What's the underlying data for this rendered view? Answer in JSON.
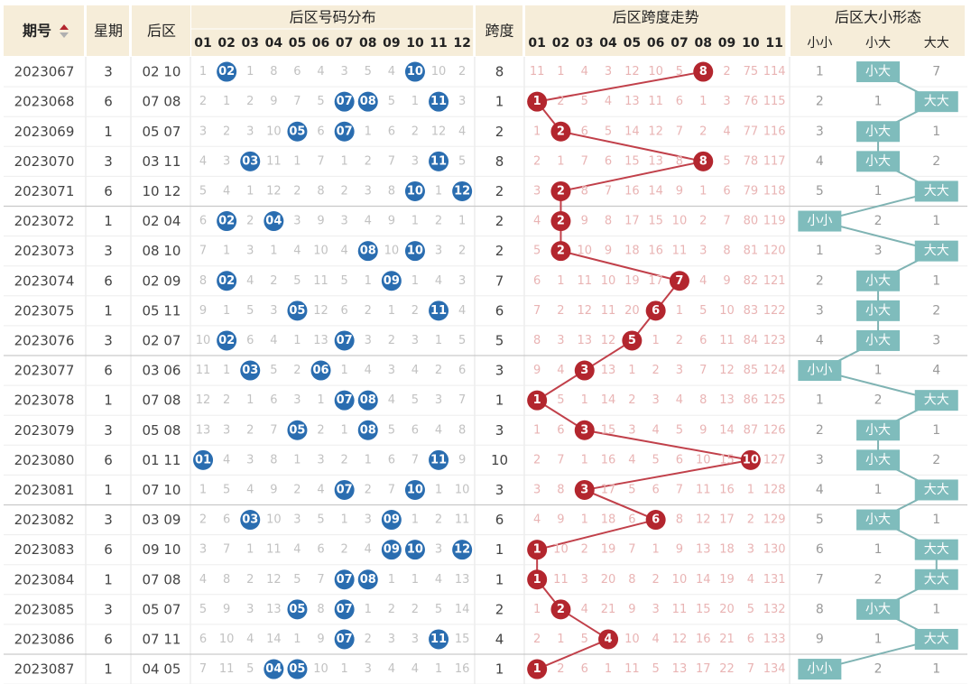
{
  "headers": {
    "issue": "期号",
    "weekday": "星期",
    "back": "后区",
    "distribution": "后区号码分布",
    "span": "跨度",
    "span_trend": "后区跨度走势",
    "size_form": "后区大小形态"
  },
  "number_labels": [
    "01",
    "02",
    "03",
    "04",
    "05",
    "06",
    "07",
    "08",
    "09",
    "10",
    "11",
    "12"
  ],
  "span_labels": [
    "01",
    "02",
    "03",
    "04",
    "05",
    "06",
    "07",
    "08",
    "09",
    "10",
    "11"
  ],
  "size_labels": [
    "小小",
    "小大",
    "大大"
  ],
  "colors": {
    "blue_ball": "#2a6db0",
    "red_ball": "#b3262e",
    "teal_tag": "#7fbcbc",
    "sort_icon_up": "#b3262e"
  },
  "chart_data": {
    "type": "table",
    "rows": [
      {
        "issue": "2023067",
        "weekday": "3",
        "back": "02 10",
        "dist": [
          "1",
          "02",
          "1",
          "8",
          "6",
          "4",
          "3",
          "5",
          "4",
          "10",
          "10",
          "2"
        ],
        "span": "8",
        "span_trend": [
          "11",
          "1",
          "4",
          "3",
          "12",
          "10",
          "5",
          "8",
          "2",
          "75",
          "114"
        ],
        "size": [
          "1",
          "小大",
          "7"
        ]
      },
      {
        "issue": "2023068",
        "weekday": "6",
        "back": "07 08",
        "dist": [
          "2",
          "1",
          "2",
          "9",
          "7",
          "5",
          "07",
          "08",
          "5",
          "1",
          "11",
          "3"
        ],
        "span": "1",
        "span_trend": [
          "1",
          "2",
          "5",
          "4",
          "13",
          "11",
          "6",
          "1",
          "3",
          "76",
          "115"
        ],
        "size": [
          "2",
          "1",
          "大大"
        ]
      },
      {
        "issue": "2023069",
        "weekday": "1",
        "back": "05 07",
        "dist": [
          "3",
          "2",
          "3",
          "10",
          "05",
          "6",
          "07",
          "1",
          "6",
          "2",
          "12",
          "4"
        ],
        "span": "2",
        "span_trend": [
          "1",
          "2",
          "6",
          "5",
          "14",
          "12",
          "7",
          "2",
          "4",
          "77",
          "116"
        ],
        "size": [
          "3",
          "小大",
          "1"
        ]
      },
      {
        "issue": "2023070",
        "weekday": "3",
        "back": "03 11",
        "dist": [
          "4",
          "3",
          "03",
          "11",
          "1",
          "7",
          "1",
          "2",
          "7",
          "3",
          "11",
          "5"
        ],
        "span": "8",
        "span_trend": [
          "2",
          "1",
          "7",
          "6",
          "15",
          "13",
          "8",
          "8",
          "5",
          "78",
          "117"
        ],
        "size": [
          "4",
          "小大",
          "2"
        ]
      },
      {
        "issue": "2023071",
        "weekday": "6",
        "back": "10 12",
        "dist": [
          "5",
          "4",
          "1",
          "12",
          "2",
          "8",
          "2",
          "3",
          "8",
          "10",
          "1",
          "12"
        ],
        "span": "2",
        "span_trend": [
          "3",
          "2",
          "8",
          "7",
          "16",
          "14",
          "9",
          "1",
          "6",
          "79",
          "118"
        ],
        "size": [
          "5",
          "1",
          "大大"
        ]
      },
      {
        "issue": "2023072",
        "weekday": "1",
        "back": "02 04",
        "dist": [
          "6",
          "02",
          "2",
          "04",
          "3",
          "9",
          "3",
          "4",
          "9",
          "1",
          "2",
          "1"
        ],
        "span": "2",
        "span_trend": [
          "4",
          "2",
          "9",
          "8",
          "17",
          "15",
          "10",
          "2",
          "7",
          "80",
          "119"
        ],
        "size": [
          "小小",
          "2",
          "1"
        ]
      },
      {
        "issue": "2023073",
        "weekday": "3",
        "back": "08 10",
        "dist": [
          "7",
          "1",
          "3",
          "1",
          "4",
          "10",
          "4",
          "08",
          "10",
          "10",
          "3",
          "2"
        ],
        "span": "2",
        "span_trend": [
          "5",
          "2",
          "10",
          "9",
          "18",
          "16",
          "11",
          "3",
          "8",
          "81",
          "120"
        ],
        "size": [
          "1",
          "3",
          "大大"
        ]
      },
      {
        "issue": "2023074",
        "weekday": "6",
        "back": "02 09",
        "dist": [
          "8",
          "02",
          "4",
          "2",
          "5",
          "11",
          "5",
          "1",
          "09",
          "1",
          "4",
          "3"
        ],
        "span": "7",
        "span_trend": [
          "6",
          "1",
          "11",
          "10",
          "19",
          "17",
          "7",
          "4",
          "9",
          "82",
          "121"
        ],
        "size": [
          "2",
          "小大",
          "1"
        ]
      },
      {
        "issue": "2023075",
        "weekday": "1",
        "back": "05 11",
        "dist": [
          "9",
          "1",
          "5",
          "3",
          "05",
          "12",
          "6",
          "2",
          "1",
          "2",
          "11",
          "4"
        ],
        "span": "6",
        "span_trend": [
          "7",
          "2",
          "12",
          "11",
          "20",
          "6",
          "1",
          "5",
          "10",
          "83",
          "122"
        ],
        "size": [
          "3",
          "小大",
          "2"
        ]
      },
      {
        "issue": "2023076",
        "weekday": "3",
        "back": "02 07",
        "dist": [
          "10",
          "02",
          "6",
          "4",
          "1",
          "13",
          "07",
          "3",
          "2",
          "3",
          "1",
          "5"
        ],
        "span": "5",
        "span_trend": [
          "8",
          "3",
          "13",
          "12",
          "5",
          "1",
          "2",
          "6",
          "11",
          "84",
          "123"
        ],
        "size": [
          "4",
          "小大",
          "3"
        ]
      },
      {
        "issue": "2023077",
        "weekday": "6",
        "back": "03 06",
        "dist": [
          "11",
          "1",
          "03",
          "5",
          "2",
          "06",
          "1",
          "4",
          "3",
          "4",
          "2",
          "6"
        ],
        "span": "3",
        "span_trend": [
          "9",
          "4",
          "3",
          "13",
          "1",
          "2",
          "3",
          "7",
          "12",
          "85",
          "124"
        ],
        "size": [
          "小小",
          "1",
          "4"
        ]
      },
      {
        "issue": "2023078",
        "weekday": "1",
        "back": "07 08",
        "dist": [
          "12",
          "2",
          "1",
          "6",
          "3",
          "1",
          "07",
          "08",
          "4",
          "5",
          "3",
          "7"
        ],
        "span": "1",
        "span_trend": [
          "1",
          "5",
          "1",
          "14",
          "2",
          "3",
          "4",
          "8",
          "13",
          "86",
          "125"
        ],
        "size": [
          "1",
          "2",
          "大大"
        ]
      },
      {
        "issue": "2023079",
        "weekday": "3",
        "back": "05 08",
        "dist": [
          "13",
          "3",
          "2",
          "7",
          "05",
          "2",
          "1",
          "08",
          "5",
          "6",
          "4",
          "8"
        ],
        "span": "3",
        "span_trend": [
          "1",
          "6",
          "3",
          "15",
          "3",
          "4",
          "5",
          "9",
          "14",
          "87",
          "126"
        ],
        "size": [
          "2",
          "小大",
          "1"
        ]
      },
      {
        "issue": "2023080",
        "weekday": "6",
        "back": "01 11",
        "dist": [
          "01",
          "4",
          "3",
          "8",
          "1",
          "3",
          "2",
          "1",
          "6",
          "7",
          "11",
          "9"
        ],
        "span": "10",
        "span_trend": [
          "2",
          "7",
          "1",
          "16",
          "4",
          "5",
          "6",
          "10",
          "15",
          "10",
          "127"
        ],
        "size": [
          "3",
          "小大",
          "2"
        ]
      },
      {
        "issue": "2023081",
        "weekday": "1",
        "back": "07 10",
        "dist": [
          "1",
          "5",
          "4",
          "9",
          "2",
          "4",
          "07",
          "2",
          "7",
          "10",
          "1",
          "10"
        ],
        "span": "3",
        "span_trend": [
          "3",
          "8",
          "3",
          "17",
          "5",
          "6",
          "7",
          "11",
          "16",
          "1",
          "128"
        ],
        "size": [
          "4",
          "1",
          "大大"
        ]
      },
      {
        "issue": "2023082",
        "weekday": "3",
        "back": "03 09",
        "dist": [
          "2",
          "6",
          "03",
          "10",
          "3",
          "5",
          "1",
          "3",
          "09",
          "1",
          "2",
          "11"
        ],
        "span": "6",
        "span_trend": [
          "4",
          "9",
          "1",
          "18",
          "6",
          "6",
          "8",
          "12",
          "17",
          "2",
          "129"
        ],
        "size": [
          "5",
          "小大",
          "1"
        ]
      },
      {
        "issue": "2023083",
        "weekday": "6",
        "back": "09 10",
        "dist": [
          "3",
          "7",
          "1",
          "11",
          "4",
          "6",
          "2",
          "4",
          "09",
          "10",
          "3",
          "12"
        ],
        "span": "1",
        "span_trend": [
          "1",
          "10",
          "2",
          "19",
          "7",
          "1",
          "9",
          "13",
          "18",
          "3",
          "130"
        ],
        "size": [
          "6",
          "1",
          "大大"
        ]
      },
      {
        "issue": "2023084",
        "weekday": "1",
        "back": "07 08",
        "dist": [
          "4",
          "8",
          "2",
          "12",
          "5",
          "7",
          "07",
          "08",
          "1",
          "1",
          "4",
          "13"
        ],
        "span": "1",
        "span_trend": [
          "1",
          "11",
          "3",
          "20",
          "8",
          "2",
          "10",
          "14",
          "19",
          "4",
          "131"
        ],
        "size": [
          "7",
          "2",
          "大大"
        ]
      },
      {
        "issue": "2023085",
        "weekday": "3",
        "back": "05 07",
        "dist": [
          "5",
          "9",
          "3",
          "13",
          "05",
          "8",
          "07",
          "1",
          "2",
          "2",
          "5",
          "14"
        ],
        "span": "2",
        "span_trend": [
          "1",
          "2",
          "4",
          "21",
          "9",
          "3",
          "11",
          "15",
          "20",
          "5",
          "132"
        ],
        "size": [
          "8",
          "小大",
          "1"
        ]
      },
      {
        "issue": "2023086",
        "weekday": "6",
        "back": "07 11",
        "dist": [
          "6",
          "10",
          "4",
          "14",
          "1",
          "9",
          "07",
          "2",
          "3",
          "3",
          "11",
          "15"
        ],
        "span": "4",
        "span_trend": [
          "2",
          "1",
          "5",
          "4",
          "10",
          "4",
          "12",
          "16",
          "21",
          "6",
          "133"
        ],
        "size": [
          "9",
          "1",
          "大大"
        ]
      },
      {
        "issue": "2023087",
        "weekday": "1",
        "back": "04 05",
        "dist": [
          "7",
          "11",
          "5",
          "04",
          "05",
          "10",
          "1",
          "3",
          "4",
          "4",
          "1",
          "16"
        ],
        "span": "1",
        "span_trend": [
          "1",
          "2",
          "6",
          "1",
          "11",
          "5",
          "13",
          "17",
          "22",
          "7",
          "134"
        ],
        "size": [
          "小小",
          "2",
          "1"
        ]
      }
    ]
  }
}
